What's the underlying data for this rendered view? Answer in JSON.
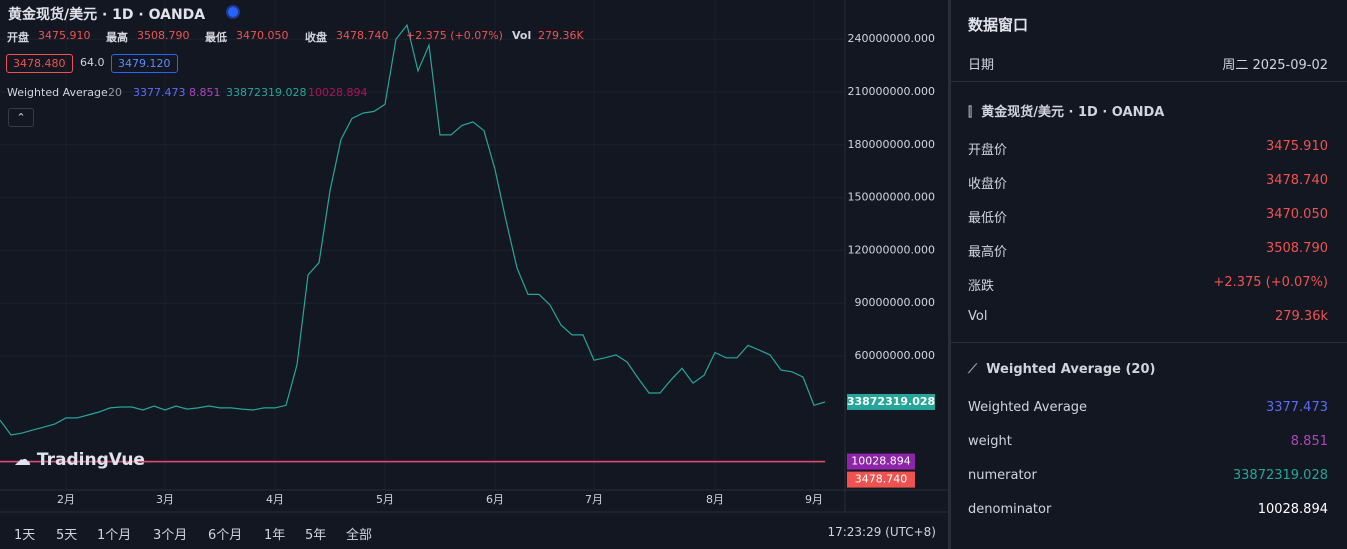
{
  "header": {
    "title": "黄金现货/美元 · 1D · OANDA",
    "ohlc": [
      {
        "label": "开盘",
        "value": "3475.910"
      },
      {
        "label": "最高",
        "value": "3508.790"
      },
      {
        "label": "最低",
        "value": "3470.050"
      },
      {
        "label": "收盘",
        "value": "3478.740"
      }
    ],
    "change": "+2.375 (+0.07%)",
    "vol_label": "Vol",
    "vol_value": "279.36K",
    "price_boxes": [
      "3478.480",
      "64.0",
      "3479.120"
    ],
    "indicator": {
      "name": "Weighted Average",
      "period": "20",
      "values": [
        "3377.473",
        "8.851",
        "33872319.028",
        "10028.894"
      ]
    }
  },
  "logo": "TradingVue",
  "chart_data": {
    "type": "line",
    "categories": [
      null,
      null,
      null,
      null,
      null,
      null,
      "2月",
      null,
      null,
      null,
      null,
      null,
      null,
      null,
      null,
      "3月",
      null,
      null,
      null,
      null,
      null,
      null,
      null,
      null,
      null,
      "4月",
      null,
      null,
      null,
      null,
      null,
      null,
      null,
      null,
      null,
      "5月",
      null,
      null,
      null,
      null,
      null,
      null,
      null,
      null,
      null,
      "6月",
      null,
      null,
      null,
      null,
      null,
      null,
      null,
      null,
      "7月",
      null,
      null,
      null,
      null,
      null,
      null,
      null,
      null,
      null,
      null,
      "8月",
      null,
      null,
      null,
      null,
      null,
      null,
      null,
      null,
      "9月",
      null
    ],
    "series": [
      {
        "name": "numerator",
        "color": "#26a69a",
        "values": [
          23600000,
          15100000,
          16200000,
          18000000,
          19600000,
          21400000,
          24800000,
          24800000,
          26500000,
          28200000,
          30500000,
          31000000,
          31000000,
          29300000,
          31600000,
          29300000,
          31600000,
          29800000,
          30500000,
          31600000,
          30500000,
          30500000,
          29800000,
          29300000,
          30500000,
          30500000,
          32000000,
          55000000,
          106000000,
          113000000,
          154000000,
          183000000,
          195000000,
          198000000,
          199000000,
          203000000,
          240000000,
          248000000,
          222000000,
          236600000,
          185600000,
          185600000,
          191000000,
          193000000,
          188000000,
          166000000,
          137000000,
          110000000,
          95000000,
          95000000,
          89000000,
          77600000,
          72000000,
          72000000,
          57600000,
          59000000,
          60600000,
          56600000,
          47500000,
          39000000,
          39000000,
          46400000,
          53000000,
          44600000,
          49000000,
          62000000,
          59000000,
          59000000,
          66000000,
          63400000,
          60600000,
          52000000,
          51000000,
          48000000,
          32000000,
          33872319.028
        ]
      }
    ],
    "hlines": [
      {
        "value": 3377.473,
        "color": "#4c5cf0"
      },
      {
        "value": 10028.894,
        "color": "#8e24aa"
      },
      {
        "value": 3478.74,
        "label": "3478.740",
        "color": "#ef5350"
      }
    ],
    "ylim": [
      -16140000,
      262270000
    ],
    "yticks": [
      {
        "value": 60000000,
        "label": "60000000.000"
      },
      {
        "value": 90000000,
        "label": "90000000.000"
      },
      {
        "value": 120000000,
        "label": "120000000.000"
      },
      {
        "value": 150000000,
        "label": "150000000.000"
      },
      {
        "value": 180000000,
        "label": "180000000.000"
      },
      {
        "value": 210000000,
        "label": "210000000.000"
      },
      {
        "value": 240000000,
        "label": "240000000.000"
      }
    ],
    "grid": true
  },
  "toolbar": {
    "ranges": [
      "1天",
      "5天",
      "1个月",
      "3个月",
      "6个月",
      "1年",
      "5年",
      "全部"
    ],
    "clock": "17:23:29 (UTC+8)"
  },
  "data_window": {
    "title": "数据窗口",
    "date_label": "日期",
    "date_value": "周二 2025-09-02",
    "symbol": "黄金现货/美元 · 1D · OANDA",
    "rows": [
      {
        "label": "开盘价",
        "value": "3475.910"
      },
      {
        "label": "收盘价",
        "value": "3478.740"
      },
      {
        "label": "最低价",
        "value": "3470.050"
      },
      {
        "label": "最高价",
        "value": "3508.790"
      },
      {
        "label": "涨跌",
        "value": "+2.375 (+0.07%)"
      },
      {
        "label": "Vol",
        "value": "279.36k"
      }
    ],
    "indicator_title": "Weighted Average (20)",
    "indicator_rows": [
      {
        "label": "Weighted Average",
        "value": "3377.473"
      },
      {
        "label": "weight",
        "value": "8.851"
      },
      {
        "label": "numerator",
        "value": "33872319.028"
      },
      {
        "label": "denominator",
        "value": "10028.894"
      }
    ]
  }
}
